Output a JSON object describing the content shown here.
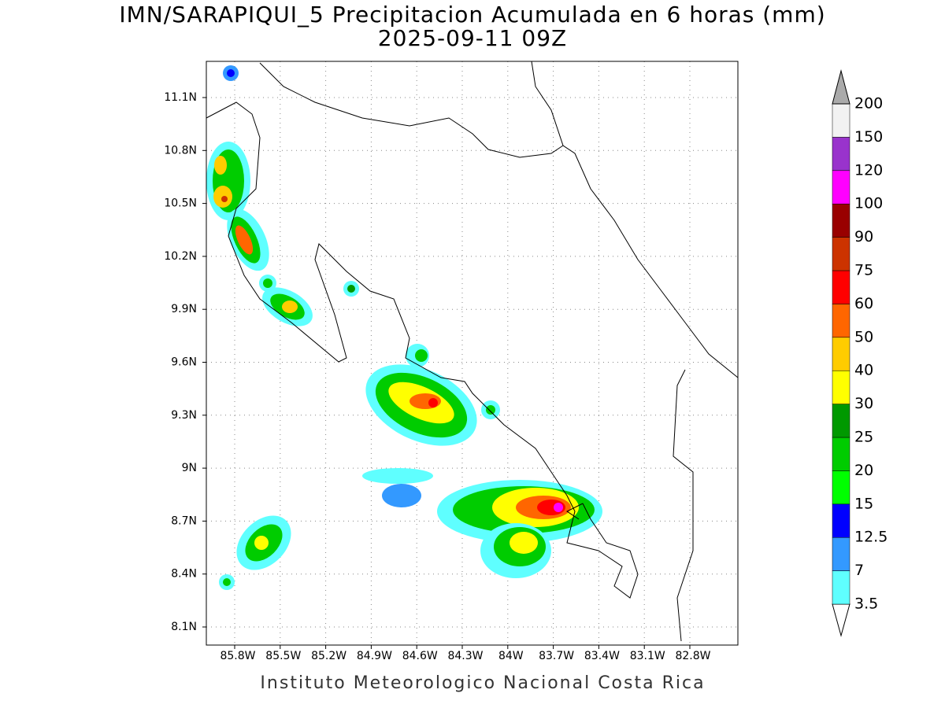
{
  "title": "IMN/SARAPIQUI_5 Precipitacion Acumulada en 6 horas (mm)",
  "subtitle": "2025-09-11 09Z",
  "map": {
    "lon_labels": [
      "85.8W",
      "85.5W",
      "85.2W",
      "84.9W",
      "84.6W",
      "84.3W",
      "84W",
      "83.7W",
      "83.4W",
      "83.1W",
      "82.8W"
    ],
    "lat_labels": [
      "11.1N",
      "10.8N",
      "10.5N",
      "10.2N",
      "9.9N",
      "9.6N",
      "9.3N",
      "9N",
      "8.7N",
      "8.4N",
      "8.1N"
    ]
  },
  "colorbar": {
    "labels": [
      "3.5",
      "7",
      "12.5",
      "15",
      "20",
      "25",
      "30",
      "40",
      "50",
      "60",
      "75",
      "90",
      "100",
      "120",
      "150",
      "200"
    ],
    "colors": [
      "#5fffff",
      "#3399ff",
      "#0000ff",
      "#00ff00",
      "#00cc00",
      "#009900",
      "#ffff00",
      "#ffcc00",
      "#ff6600",
      "#ff0000",
      "#cc3300",
      "#990000",
      "#ff00ff",
      "#9933cc",
      "#f2f2f2"
    ],
    "under_color": "#ffffff",
    "over_color": "#aaaaaa"
  },
  "footer": "Instituto Meteorologico Nacional Costa Rica"
}
